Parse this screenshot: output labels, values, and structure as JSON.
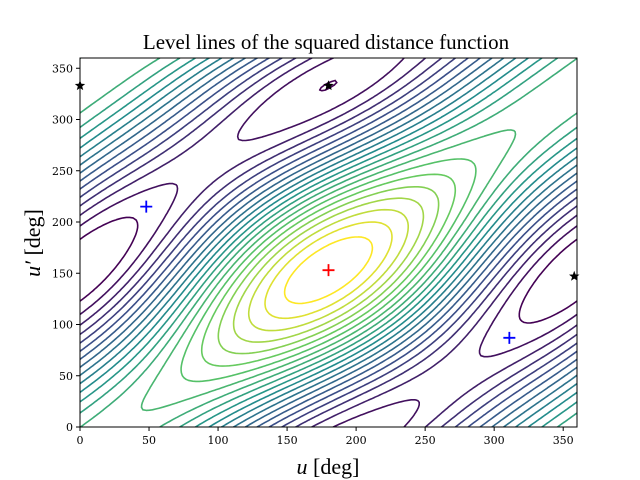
{
  "chart_data": {
    "type": "contour",
    "title": "Level lines of the squared distance function",
    "xlabel_var": "u",
    "xlabel_unit": "[deg]",
    "ylabel_var": "u′",
    "ylabel_unit": "[deg]",
    "xlim": [
      0,
      360
    ],
    "ylim": [
      0,
      360
    ],
    "xticks": [
      0,
      50,
      100,
      150,
      200,
      250,
      300,
      350
    ],
    "yticks": [
      0,
      50,
      100,
      150,
      200,
      250,
      300,
      350
    ],
    "colormap": "viridis",
    "num_levels": 22,
    "maximum": {
      "x": 180,
      "y": 153,
      "marker": "+",
      "color": "#ff0000"
    },
    "minima": [
      {
        "x": 48,
        "y": 215,
        "marker": "+",
        "color": "#0000ff"
      },
      {
        "x": 311,
        "y": 87,
        "marker": "+",
        "color": "#0000ff"
      }
    ],
    "saddles": [
      {
        "x": 0,
        "y": 333,
        "marker": "star",
        "color": "#000000"
      },
      {
        "x": 180,
        "y": 333,
        "marker": "star",
        "color": "#000000"
      },
      {
        "x": 358,
        "y": 147,
        "marker": "star",
        "color": "#000000"
      }
    ]
  }
}
